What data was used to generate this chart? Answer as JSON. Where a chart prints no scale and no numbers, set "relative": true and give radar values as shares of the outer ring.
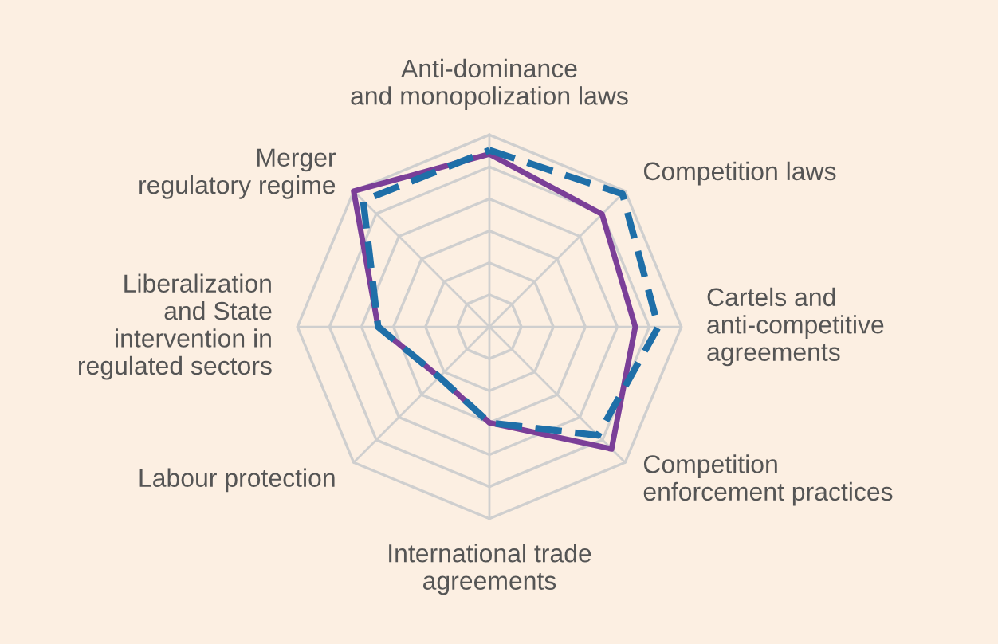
{
  "chart_data": {
    "type": "radar",
    "relative": true,
    "grid": true,
    "marker": "none",
    "categories": [
      "Anti-dominance\nand monopolization laws",
      "Competition laws",
      "Cartels and\nanti-competitive\nagreements",
      "Competition\nenforcement practices",
      "International trade\nagreements",
      "Labour protection",
      "Liberalization\nand State\nintervention in\nregulated sectors",
      "Merger\nregulatory regime"
    ],
    "series": [
      {
        "color": "#7b3f98",
        "line_style": "solid",
        "values": [
          0.9,
          0.83,
          0.76,
          0.9,
          0.5,
          0.37,
          0.58,
          1.0
        ]
      },
      {
        "color": "#1f6fa8",
        "line_style": "dashed",
        "values": [
          0.92,
          0.98,
          0.88,
          0.8,
          0.5,
          0.37,
          0.58,
          0.93
        ]
      }
    ]
  }
}
